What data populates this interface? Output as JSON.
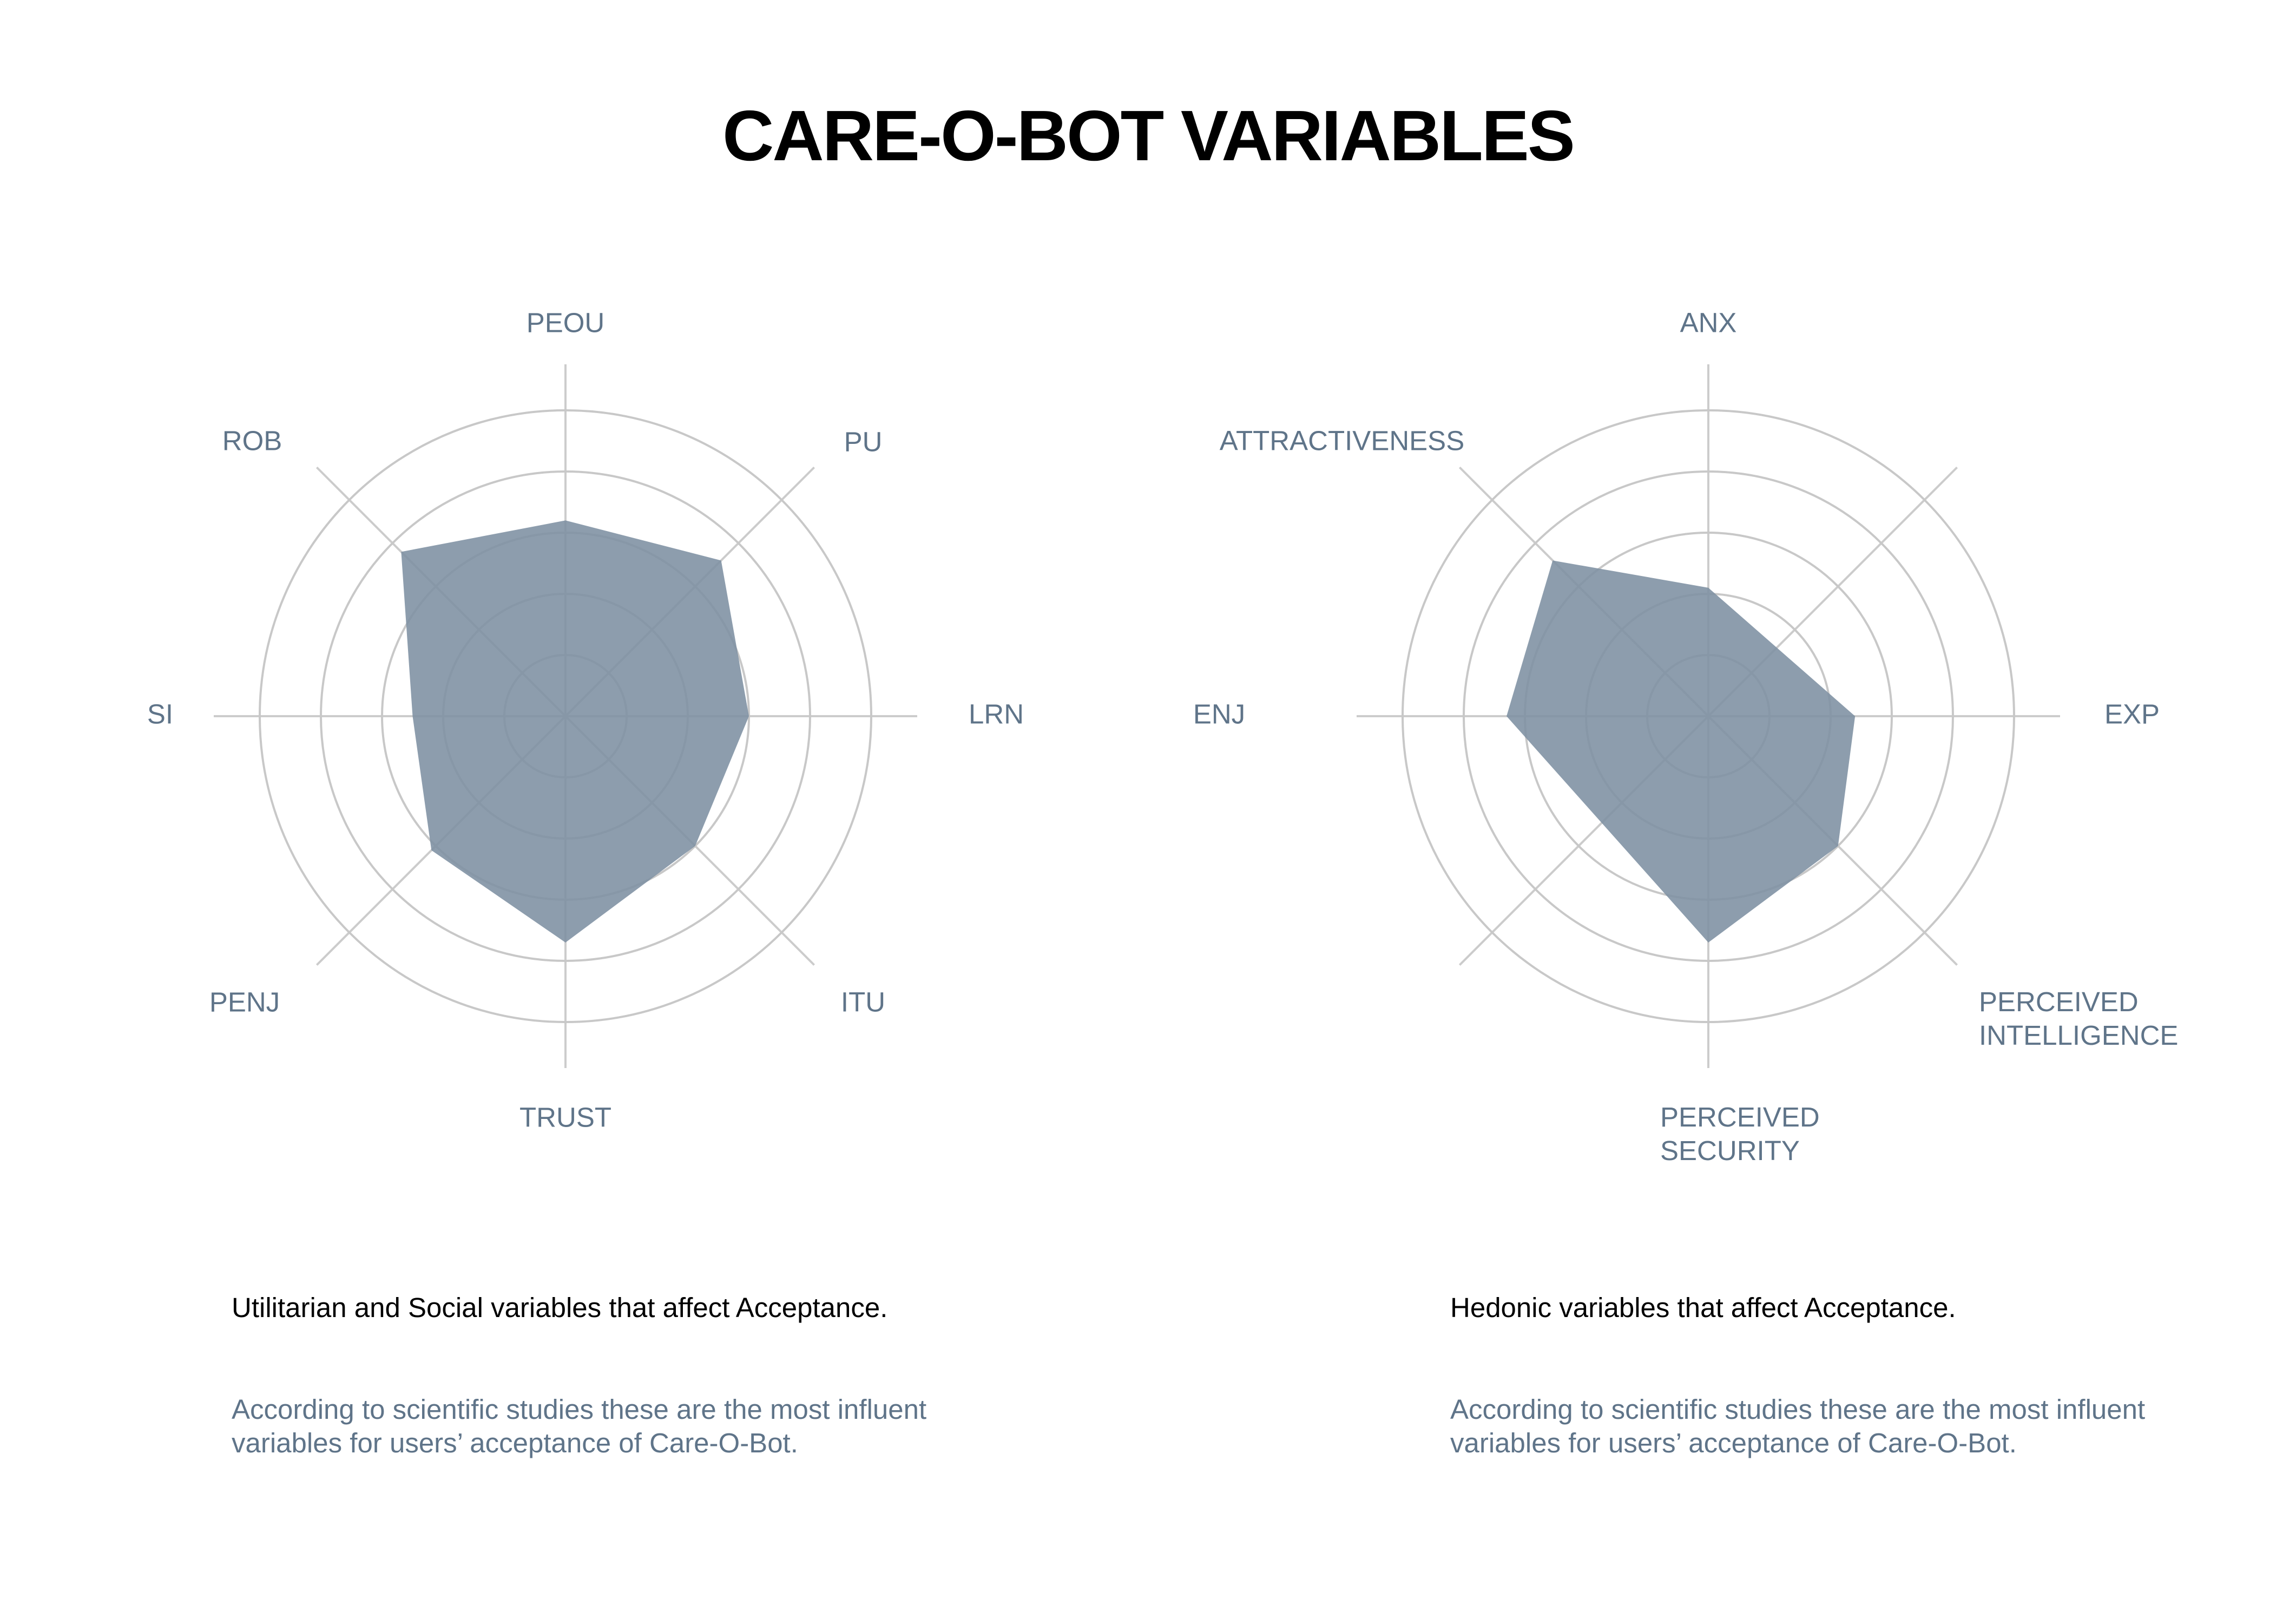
{
  "title": "CARE-O-BOT VARIABLES",
  "colors": {
    "fill": "#7d8fa2",
    "label": "#5f7489",
    "grid": "#c8c8c8",
    "spoke": "#cccccc"
  },
  "chart_data": [
    {
      "type": "radar",
      "title": "",
      "rlim": [
        0,
        5
      ],
      "ring_values": [
        1,
        2,
        3,
        4,
        5
      ],
      "grid": true,
      "axes": [
        "PEOU",
        "PU",
        "LRN",
        "ITU",
        "TRUST",
        "PENJ",
        "SI",
        "ROB"
      ],
      "values": [
        3.2,
        3.6,
        3.0,
        3.0,
        3.7,
        3.1,
        2.5,
        3.8
      ]
    },
    {
      "type": "radar",
      "title": "",
      "rlim": [
        0,
        5
      ],
      "ring_values": [
        1,
        2,
        3,
        4,
        5
      ],
      "grid": true,
      "axes": [
        "ANX",
        "EXP",
        "PERCEIVED INTELLIGENCE",
        "PERCEIVED SECURITY",
        "ENJ",
        "ATTRACTIVENESS"
      ],
      "axis_angles_deg": [
        0,
        90,
        135,
        180,
        270,
        315
      ],
      "values": [
        2.1,
        2.4,
        3.0,
        3.7,
        3.3,
        3.6
      ]
    }
  ],
  "captions": [
    {
      "heading": "Utilitarian and Social variables that affect Acceptance.",
      "line1": "According to scientific studies these are the most influent",
      "line2": "variables for users’ acceptance of Care-O-Bot."
    },
    {
      "heading": "Hedonic variables that affect Acceptance.",
      "line1": "According to scientific studies these are the most influent",
      "line2": "variables for users’ acceptance of Care-O-Bot."
    }
  ]
}
